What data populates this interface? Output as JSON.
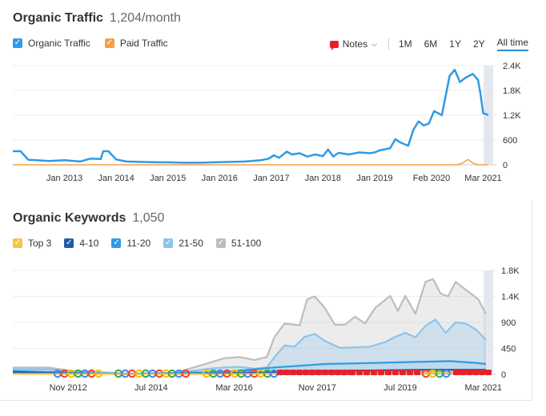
{
  "traffic": {
    "title": "Organic Traffic",
    "subtitle": "1,204/month",
    "legend": [
      {
        "label": "Organic Traffic",
        "color": "#2f9be4"
      },
      {
        "label": "Paid Traffic",
        "color": "#f5a04a"
      }
    ],
    "notes_label": "Notes",
    "ranges": [
      "1M",
      "6M",
      "1Y",
      "2Y",
      "All time"
    ],
    "active_range": "All time"
  },
  "keywords": {
    "title": "Organic Keywords",
    "subtitle": "1,050",
    "legend": [
      {
        "label": "Top 3",
        "color": "#f5c443"
      },
      {
        "label": "4-10",
        "color": "#1e5ea8"
      },
      {
        "label": "11-20",
        "color": "#2f9be4"
      },
      {
        "label": "21-50",
        "color": "#8cc4ec"
      },
      {
        "label": "51-100",
        "color": "#bdbdbd"
      }
    ]
  },
  "chart_data": [
    {
      "type": "line",
      "title": "Organic Traffic",
      "x_tick_labels": [
        "Jan 2013",
        "Jan 2014",
        "Jan 2015",
        "Jan 2016",
        "Jan 2017",
        "Jan 2018",
        "Jan 2019",
        "Feb 2020",
        "Mar 2021"
      ],
      "ylim": [
        0,
        2400
      ],
      "y_ticks": [
        0,
        600,
        1200,
        1800,
        2400
      ],
      "y_tick_labels": [
        "0",
        "600",
        "1.2K",
        "1.8K",
        "2.4K"
      ],
      "x_range": [
        2012.0,
        2021.2
      ],
      "series": [
        {
          "name": "Organic Traffic",
          "color": "#2f9be4",
          "x": [
            2012.0,
            2012.15,
            2012.3,
            2012.45,
            2012.7,
            2013.0,
            2013.3,
            2013.5,
            2013.7,
            2013.75,
            2013.85,
            2014.0,
            2014.2,
            2014.5,
            2014.8,
            2015.0,
            2015.3,
            2015.6,
            2015.9,
            2016.2,
            2016.5,
            2016.8,
            2016.95,
            2017.05,
            2017.15,
            2017.3,
            2017.4,
            2017.55,
            2017.7,
            2017.85,
            2018.0,
            2018.1,
            2018.2,
            2018.3,
            2018.5,
            2018.7,
            2018.9,
            2019.0,
            2019.1,
            2019.3,
            2019.4,
            2019.5,
            2019.65,
            2019.75,
            2019.85,
            2019.95,
            2020.05,
            2020.15,
            2020.3,
            2020.45,
            2020.55,
            2020.6,
            2020.65,
            2020.75,
            2020.9,
            2021.0,
            2021.05,
            2021.1,
            2021.2
          ],
          "values": [
            330,
            330,
            120,
            110,
            90,
            110,
            80,
            150,
            140,
            330,
            330,
            130,
            80,
            70,
            60,
            60,
            50,
            50,
            60,
            70,
            80,
            110,
            150,
            230,
            170,
            320,
            250,
            280,
            200,
            250,
            210,
            370,
            200,
            290,
            250,
            300,
            280,
            300,
            350,
            400,
            620,
            540,
            460,
            850,
            1050,
            950,
            1000,
            1300,
            1200,
            2150,
            2300,
            2150,
            2000,
            2100,
            2200,
            2050,
            1700,
            1250,
            1204
          ]
        },
        {
          "name": "Paid Traffic",
          "color": "#f5a04a",
          "x": [
            2012.0,
            2020.6,
            2020.7,
            2020.8,
            2020.9,
            2021.0,
            2021.2
          ],
          "values": [
            0,
            0,
            40,
            130,
            40,
            0,
            0
          ]
        }
      ]
    },
    {
      "type": "area",
      "title": "Organic Keywords",
      "x_tick_labels": [
        "Nov 2012",
        "Jul 2014",
        "Mar 2016",
        "Nov 2017",
        "Jul 2019",
        "Mar 2021"
      ],
      "ylim": [
        0,
        1800
      ],
      "y_ticks": [
        0,
        450,
        900,
        1350,
        1800
      ],
      "y_tick_labels": [
        "0",
        "450",
        "900",
        "1.4K",
        "1.8K"
      ],
      "x_range": [
        2011.8,
        2021.25
      ],
      "annotations": "Google update markers and note flags along the x-axis",
      "series": [
        {
          "name": "51-100",
          "color": "#bdbdbd",
          "x": [
            2011.8,
            2012.5,
            2013.0,
            2013.5,
            2014.0,
            2015.0,
            2015.7,
            2016.0,
            2016.3,
            2016.6,
            2016.85,
            2017.0,
            2017.2,
            2017.5,
            2017.65,
            2017.8,
            2018.0,
            2018.2,
            2018.4,
            2018.6,
            2018.8,
            2019.0,
            2019.3,
            2019.45,
            2019.6,
            2019.8,
            2020.0,
            2020.15,
            2020.3,
            2020.45,
            2020.6,
            2020.75,
            2020.9,
            2021.05,
            2021.2
          ],
          "values": [
            120,
            120,
            60,
            40,
            20,
            20,
            200,
            280,
            300,
            250,
            300,
            650,
            880,
            850,
            1300,
            1350,
            1150,
            860,
            860,
            1000,
            880,
            1150,
            1360,
            1100,
            1360,
            1050,
            1600,
            1650,
            1400,
            1350,
            1600,
            1500,
            1400,
            1300,
            1050
          ]
        },
        {
          "name": "21-50",
          "color": "#8cc4ec",
          "x": [
            2011.8,
            2012.5,
            2013.0,
            2014.0,
            2015.0,
            2015.7,
            2016.0,
            2016.3,
            2016.6,
            2016.85,
            2017.0,
            2017.2,
            2017.4,
            2017.6,
            2017.8,
            2018.0,
            2018.3,
            2018.6,
            2018.9,
            2019.2,
            2019.4,
            2019.6,
            2019.8,
            2020.0,
            2020.2,
            2020.4,
            2020.6,
            2020.8,
            2021.0,
            2021.2
          ],
          "values": [
            90,
            90,
            40,
            15,
            15,
            100,
            120,
            130,
            100,
            120,
            300,
            500,
            480,
            650,
            700,
            580,
            460,
            470,
            480,
            560,
            650,
            720,
            640,
            840,
            950,
            720,
            900,
            880,
            780,
            600
          ]
        },
        {
          "name": "11-20",
          "color": "#2f9be4",
          "x": [
            2011.8,
            2013.0,
            2014.0,
            2016.0,
            2017.0,
            2018.0,
            2019.0,
            2020.0,
            2020.5,
            2021.0,
            2021.2
          ],
          "values": [
            60,
            30,
            10,
            40,
            120,
            180,
            200,
            220,
            230,
            200,
            180
          ]
        },
        {
          "name": "4-10",
          "color": "#1e5ea8",
          "x": [
            2011.8,
            2013.0,
            2014.0,
            2016.0,
            2018.0,
            2020.0,
            2021.2
          ],
          "values": [
            40,
            15,
            5,
            20,
            60,
            80,
            80
          ]
        },
        {
          "name": "Top 3",
          "color": "#f5c443",
          "x": [
            2011.8,
            2016.0,
            2018.0,
            2020.0,
            2021.2
          ],
          "values": [
            10,
            5,
            15,
            25,
            25
          ]
        }
      ]
    }
  ]
}
